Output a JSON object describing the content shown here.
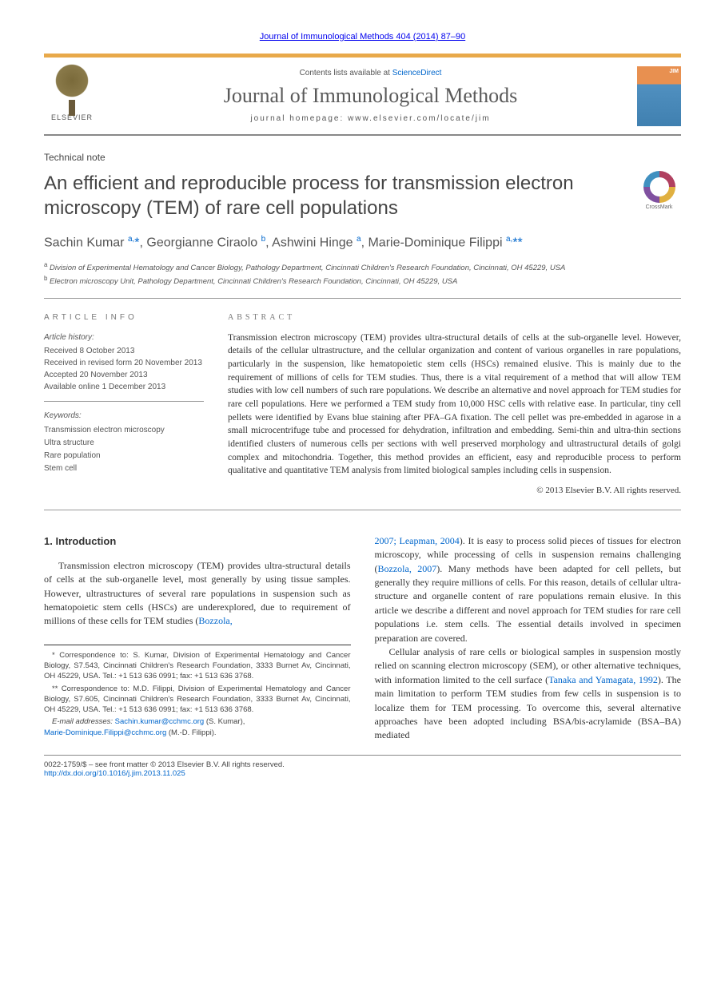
{
  "journal_ref": "Journal of Immunological Methods 404 (2014) 87–90",
  "header": {
    "contents_prefix": "Contents lists available at ",
    "contents_link": "ScienceDirect",
    "journal_name": "Journal of Immunological Methods",
    "homepage_prefix": "journal homepage: ",
    "homepage_url": "www.elsevier.com/locate/jim",
    "publisher_label": "ELSEVIER",
    "crossmark_label": "CrossMark"
  },
  "article_type": "Technical note",
  "title": "An efficient and reproducible process for transmission electron microscopy (TEM) of rare cell populations",
  "authors_html": "Sachin Kumar <sup>a,</sup><a href=\"#\">*</a>, Georgianne Ciraolo <sup>b</sup>, Ashwini Hinge <sup>a</sup>, Marie-Dominique Filippi <sup>a,</sup><a href=\"#\">**</a>",
  "affiliations": {
    "a": "Division of Experimental Hematology and Cancer Biology, Pathology Department, Cincinnati Children's Research Foundation, Cincinnati, OH 45229, USA",
    "b": "Electron microscopy Unit, Pathology Department, Cincinnati Children's Research Foundation, Cincinnati, OH 45229, USA"
  },
  "info": {
    "heading": "ARTICLE INFO",
    "history_label": "Article history:",
    "history": [
      "Received 8 October 2013",
      "Received in revised form 20 November 2013",
      "Accepted 20 November 2013",
      "Available online 1 December 2013"
    ],
    "keywords_label": "Keywords:",
    "keywords": [
      "Transmission electron microscopy",
      "Ultra structure",
      "Rare population",
      "Stem cell"
    ]
  },
  "abstract": {
    "heading": "ABSTRACT",
    "text": "Transmission electron microscopy (TEM) provides ultra-structural details of cells at the sub-organelle level. However, details of the cellular ultrastructure, and the cellular organization and content of various organelles in rare populations, particularly in the suspension, like hematopoietic stem cells (HSCs) remained elusive. This is mainly due to the requirement of millions of cells for TEM studies. Thus, there is a vital requirement of a method that will allow TEM studies with low cell numbers of such rare populations. We describe an alternative and novel approach for TEM studies for rare cell populations. Here we performed a TEM study from 10,000 HSC cells with relative ease. In particular, tiny cell pellets were identified by Evans blue staining after PFA–GA fixation. The cell pellet was pre-embedded in agarose in a small microcentrifuge tube and processed for dehydration, infiltration and embedding. Semi-thin and ultra-thin sections identified clusters of numerous cells per sections with well preserved morphology and ultrastructural details of golgi complex and mitochondria. Together, this method provides an efficient, easy and reproducible process to perform qualitative and quantitative TEM analysis from limited biological samples including cells in suspension.",
    "copyright": "© 2013 Elsevier B.V. All rights reserved."
  },
  "body": {
    "section_heading": "1. Introduction",
    "col1_p1": "Transmission electron microscopy (TEM) provides ultra-structural details of cells at the sub-organelle level, most generally by using tissue samples. However, ultrastructures of several rare populations in suspension such as hematopoietic stem cells (HSCs) are underexplored, due to requirement of millions of these cells for TEM studies (",
    "col1_link1": "Bozzola,",
    "col2_link1": "2007; Leapman, 2004",
    "col2_p1a": "). It is easy to process solid pieces of tissues for electron microscopy, while processing of cells in suspension remains challenging (",
    "col2_link2": "Bozzola, 2007",
    "col2_p1b": "). Many methods have been adapted for cell pellets, but generally they require millions of cells. For this reason, details of cellular ultra-structure and organelle content of rare populations remain elusive. In this article we describe a different and novel approach for TEM studies for rare cell populations i.e. stem cells. The essential details involved in specimen preparation are covered.",
    "col2_p2a": "Cellular analysis of rare cells or biological samples in suspension mostly relied on scanning electron microscopy (SEM), or other alternative techniques, with information limited to the cell surface (",
    "col2_link3": "Tanaka and Yamagata, 1992",
    "col2_p2b": "). The main limitation to perform TEM studies from few cells in suspension is to localize them for TEM processing. To overcome this, several alternative approaches have been adopted including BSA/bis-acrylamide (BSA–BA) mediated"
  },
  "footnotes": {
    "c1": "* Correspondence to: S. Kumar, Division of Experimental Hematology and Cancer Biology, S7.543, Cincinnati Children's Research Foundation, 3333 Burnet Av, Cincinnati, OH 45229, USA. Tel.: +1 513 636 0991; fax: +1 513 636 3768.",
    "c2": "** Correspondence to: M.D. Filippi, Division of Experimental Hematology and Cancer Biology, S7.605, Cincinnati Children's Research Foundation, 3333 Burnet Av, Cincinnati, OH 45229, USA. Tel.: +1 513 636 0991; fax: +1 513 636 3768.",
    "email_label": "E-mail addresses:",
    "email1": "Sachin.kumar@cchmc.org",
    "email1_who": " (S. Kumar),",
    "email2": "Marie-Dominique.Filippi@cchmc.org",
    "email2_who": " (M.-D. Filippi)."
  },
  "bottom": {
    "issn_line": "0022-1759/$ – see front matter © 2013 Elsevier B.V. All rights reserved.",
    "doi": "http://dx.doi.org/10.1016/j.jim.2013.11.025"
  },
  "colors": {
    "link": "#0066cc",
    "accent_bar": "#e8a94a",
    "text": "#333333",
    "heading_gray": "#5a5a5a"
  }
}
